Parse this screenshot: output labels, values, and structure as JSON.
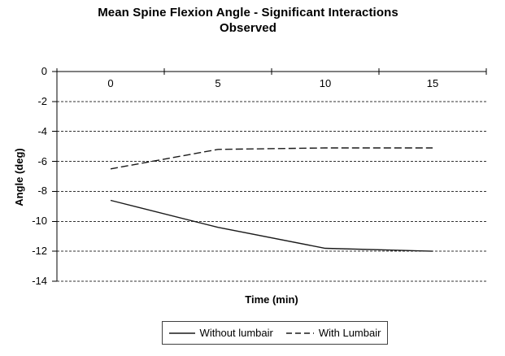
{
  "colors": {
    "background": "#ffffff",
    "axis": "#000000",
    "grid": "#333333",
    "series_line": "#1a1a1a",
    "text": "#000000",
    "legend_border": "#404040"
  },
  "chart_data": {
    "type": "line",
    "title": "Mean Spine Flexion Angle - Significant Interactions Observed",
    "xlabel": "Time (min)",
    "ylabel": "Angle (deg)",
    "categories": [
      0,
      5,
      10,
      15
    ],
    "x_tick_labels": [
      "0",
      "5",
      "10",
      "15"
    ],
    "y_ticks": [
      0,
      -2,
      -4,
      -6,
      -8,
      -10,
      -12,
      -14
    ],
    "y_tick_labels": [
      "0",
      "-2",
      "-4",
      "-6",
      "-8",
      "-10",
      "-12",
      "-14"
    ],
    "ylim": [
      0,
      -14
    ],
    "grid": "horizontal-dashed",
    "legend_position": "bottom",
    "series": [
      {
        "name": "Without lumbair",
        "style": "solid",
        "values": [
          -8.6,
          -10.4,
          -11.8,
          -12
        ]
      },
      {
        "name": "With Lumbair",
        "style": "dashed",
        "values": [
          -6.5,
          -5.2,
          -5.1,
          -5.1
        ]
      }
    ]
  }
}
